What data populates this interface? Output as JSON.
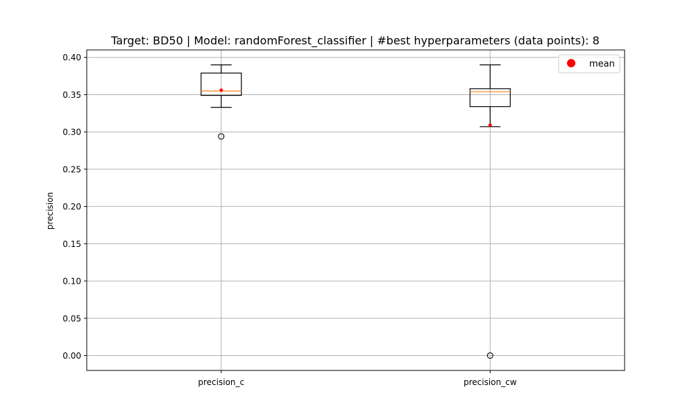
{
  "chart_data": {
    "type": "box",
    "title": "Target: BD50 | Model: randomForest_classifier | #best hyperparameters (data points): 8",
    "xlabel": "",
    "ylabel": "precision",
    "ylim": [
      -0.02,
      0.41
    ],
    "yticks": [
      0.0,
      0.05,
      0.1,
      0.15,
      0.2,
      0.25,
      0.3,
      0.35,
      0.4
    ],
    "ytick_labels": [
      "0.00",
      "0.05",
      "0.10",
      "0.15",
      "0.20",
      "0.25",
      "0.30",
      "0.35",
      "0.40"
    ],
    "grid": true,
    "legend": {
      "position": "top-right",
      "entries": [
        {
          "label": "mean",
          "color": "#ff0000",
          "marker": "circle"
        }
      ]
    },
    "categories": [
      "precision_c",
      "precision_cw"
    ],
    "boxes": [
      {
        "name": "precision_c",
        "whisker_low": 0.333,
        "q1": 0.349,
        "median": 0.355,
        "q3": 0.379,
        "whisker_high": 0.39,
        "mean": 0.356,
        "outliers": [
          0.294
        ]
      },
      {
        "name": "precision_cw",
        "whisker_low": 0.307,
        "q1": 0.334,
        "median": 0.354,
        "q3": 0.358,
        "whisker_high": 0.39,
        "mean": 0.309,
        "outliers": [
          0.0
        ]
      }
    ],
    "colors": {
      "box": "#000000",
      "median": "#ff7f0e",
      "mean": "#ff0000",
      "grid": "#b0b0b0"
    }
  }
}
